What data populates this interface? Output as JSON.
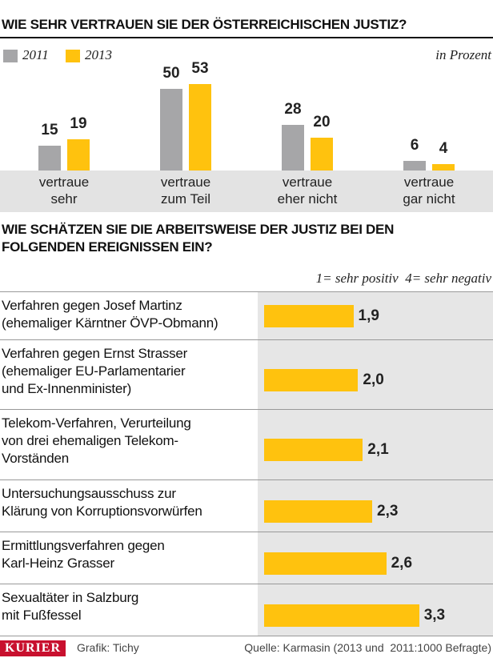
{
  "chart_data": [
    {
      "type": "bar",
      "title": "WIE SEHR VERTRAUEN SIE DER ÖSTERREICHISCHEN JUSTIZ?",
      "unit_note": "in Prozent",
      "categories": [
        "vertraue\nsehr",
        "vertraue\nzum Teil",
        "vertraue\neher nicht",
        "vertraue\ngar nicht"
      ],
      "series": [
        {
          "name": "2011",
          "color": "#a6a6a8",
          "values": [
            15,
            50,
            28,
            6
          ]
        },
        {
          "name": "2013",
          "color": "#ffc20e",
          "values": [
            19,
            53,
            20,
            4
          ]
        }
      ]
    },
    {
      "type": "hbar",
      "title": "WIE SCHÄTZEN SIE DIE ARBEITSWEISE DER JUSTIZ BEI DEN\nFOLGENDEN EREIGNISSEN EIN?",
      "scale_note": "1= sehr positiv  4= sehr negativ",
      "categories": [
        "Verfahren gegen Josef Martinz\n(ehemaliger Kärntner ÖVP-Obmann)",
        "Verfahren gegen Ernst Strasser\n(ehemaliger EU-Parlamentarier\nund Ex-Innenminister)",
        "Telekom-Verfahren, Verurteilung\nvon drei ehemaligen Telekom-\nVorständen",
        "Untersuchungsausschuss zur\nKlärung von Korruptionsvorwürfen",
        "Ermittlungsverfahren gegen\nKarl-Heinz Grasser",
        "Sexualtäter in Salzburg\nmit Fußfessel"
      ],
      "values": [
        1.9,
        2.0,
        2.1,
        2.3,
        2.6,
        3.3
      ],
      "value_labels": [
        "1,9",
        "2,0",
        "2,1",
        "2,3",
        "2,6",
        "3,3"
      ],
      "color": "#ffc20e"
    }
  ],
  "footer": {
    "logo": "KURIER",
    "credit": "Grafik: Tichy",
    "source": "Quelle: Karmasin (2013 und  2011:1000 Befragte)"
  }
}
